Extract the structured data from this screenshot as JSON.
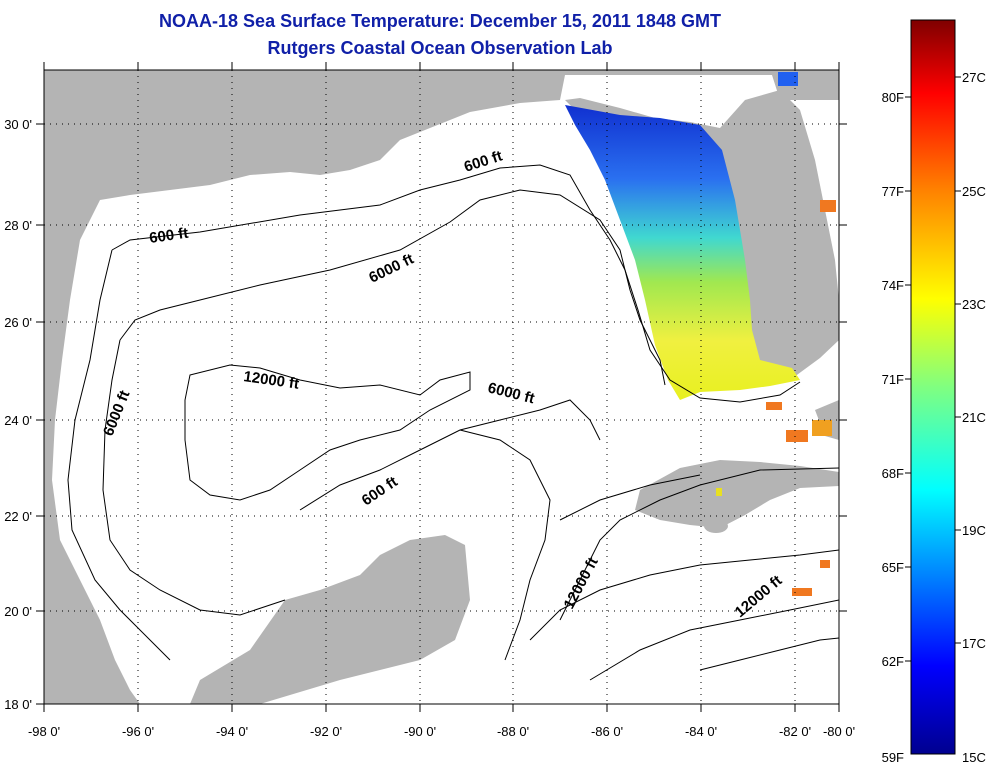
{
  "title": {
    "line1": "NOAA-18 Sea Surface Temperature:  December 15, 2011 1848 GMT",
    "line2": "Rutgers Coastal Ocean Observation Lab"
  },
  "map": {
    "lon_ticks": [
      "-98 0'",
      "-96 0'",
      "-94 0'",
      "-92 0'",
      "-90 0'",
      "-88 0'",
      "-86 0'",
      "-84 0'",
      "-82 0'",
      "-80 0'"
    ],
    "lat_ticks": [
      "30 0'",
      "28 0'",
      "26 0'",
      "24 0'",
      "22 0'",
      "20 0'",
      "18 0'"
    ],
    "lon_range": [
      -98,
      -80
    ],
    "lat_range": [
      18,
      31
    ],
    "grid": "dotted",
    "land_color": "#b4b4b4",
    "water_color": "#ffffff",
    "contour_labels": [
      {
        "text": "600 ft"
      },
      {
        "text": "600 ft"
      },
      {
        "text": "6000 ft"
      },
      {
        "text": "6000 ft"
      },
      {
        "text": "12000 ft"
      },
      {
        "text": "6000 ft"
      },
      {
        "text": "600 ft"
      },
      {
        "text": "12000 ft"
      },
      {
        "text": "12000 ft"
      }
    ]
  },
  "colorbar": {
    "fahrenheit_labels": [
      "80F",
      "77F",
      "74F",
      "71F",
      "68F",
      "65F",
      "62F",
      "59F"
    ],
    "celsius_labels": [
      "27C",
      "25C",
      "23C",
      "21C",
      "19C",
      "17C",
      "15C"
    ],
    "colors": [
      "#7f0000",
      "#ff0000",
      "#ff8000",
      "#ffff00",
      "#80ff80",
      "#00ffff",
      "#0080ff",
      "#0000ff",
      "#00008f"
    ]
  }
}
